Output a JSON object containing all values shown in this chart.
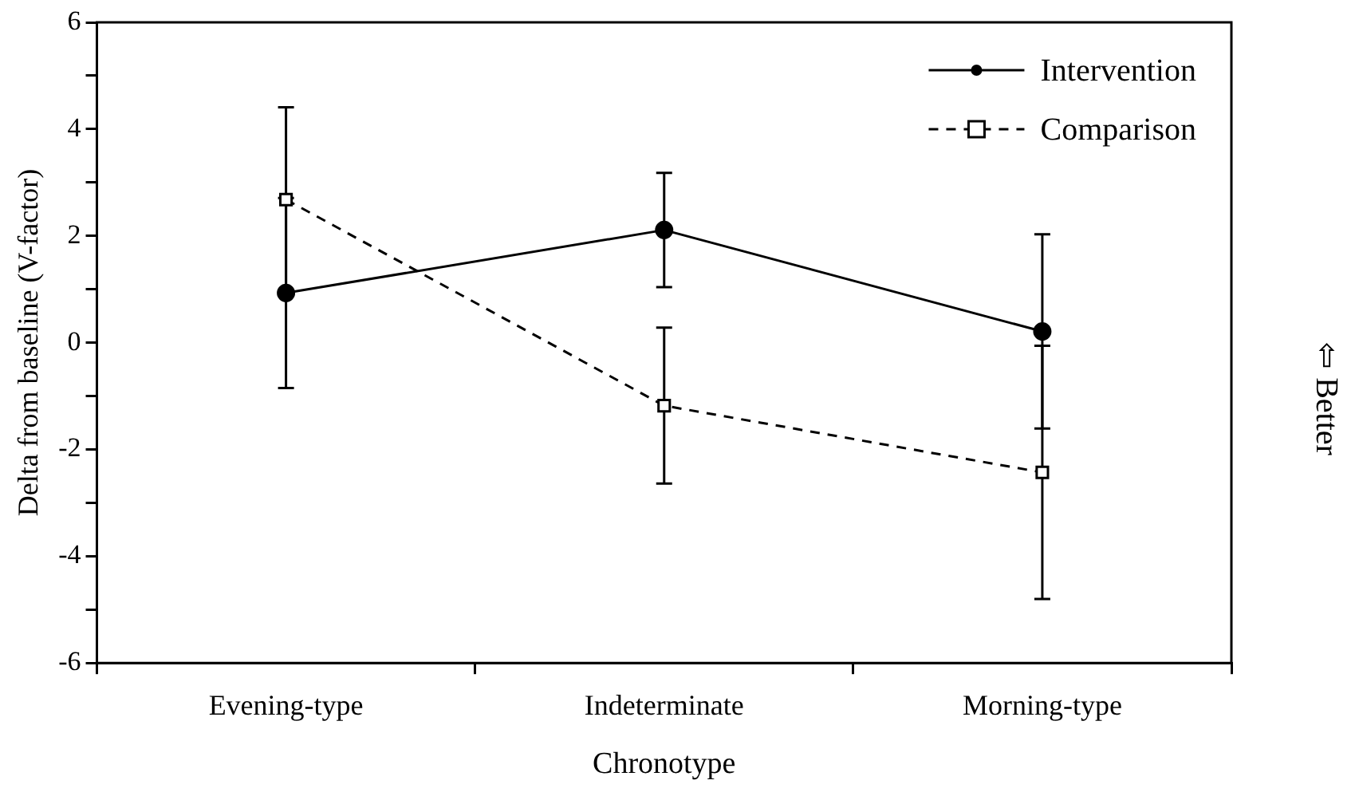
{
  "chart_data": {
    "type": "line",
    "xlabel": "Chronotype",
    "ylabel": "Delta from baseline (V-factor)",
    "categories": [
      "Evening-type",
      "Indeterminate",
      "Morning-type"
    ],
    "series": [
      {
        "name": "Intervention",
        "color": "#000000",
        "marker": "circle",
        "line_style": "solid",
        "values": [
          0.93,
          2.11,
          0.21
        ],
        "errors": [
          1.78,
          1.07,
          1.82
        ]
      },
      {
        "name": "Comparison",
        "color": "#000000",
        "marker": "square",
        "line_style": "dashed",
        "values": [
          2.68,
          -1.18,
          -2.43
        ],
        "errors": [
          1.73,
          1.46,
          2.37
        ]
      }
    ],
    "ylim": [
      -6,
      6
    ],
    "yticks": [
      -6,
      {
        "value": -5,
        "label": null
      },
      -4,
      {
        "value": -3,
        "label": null
      },
      -2,
      {
        "value": -1,
        "label": null
      },
      0,
      {
        "value": 1,
        "label": null
      },
      2,
      {
        "value": 3,
        "label": null
      },
      4,
      {
        "value": 5,
        "label": null
      },
      6
    ],
    "grid": false,
    "legend": "top right",
    "annotations": [
      "⇦ Better"
    ]
  }
}
